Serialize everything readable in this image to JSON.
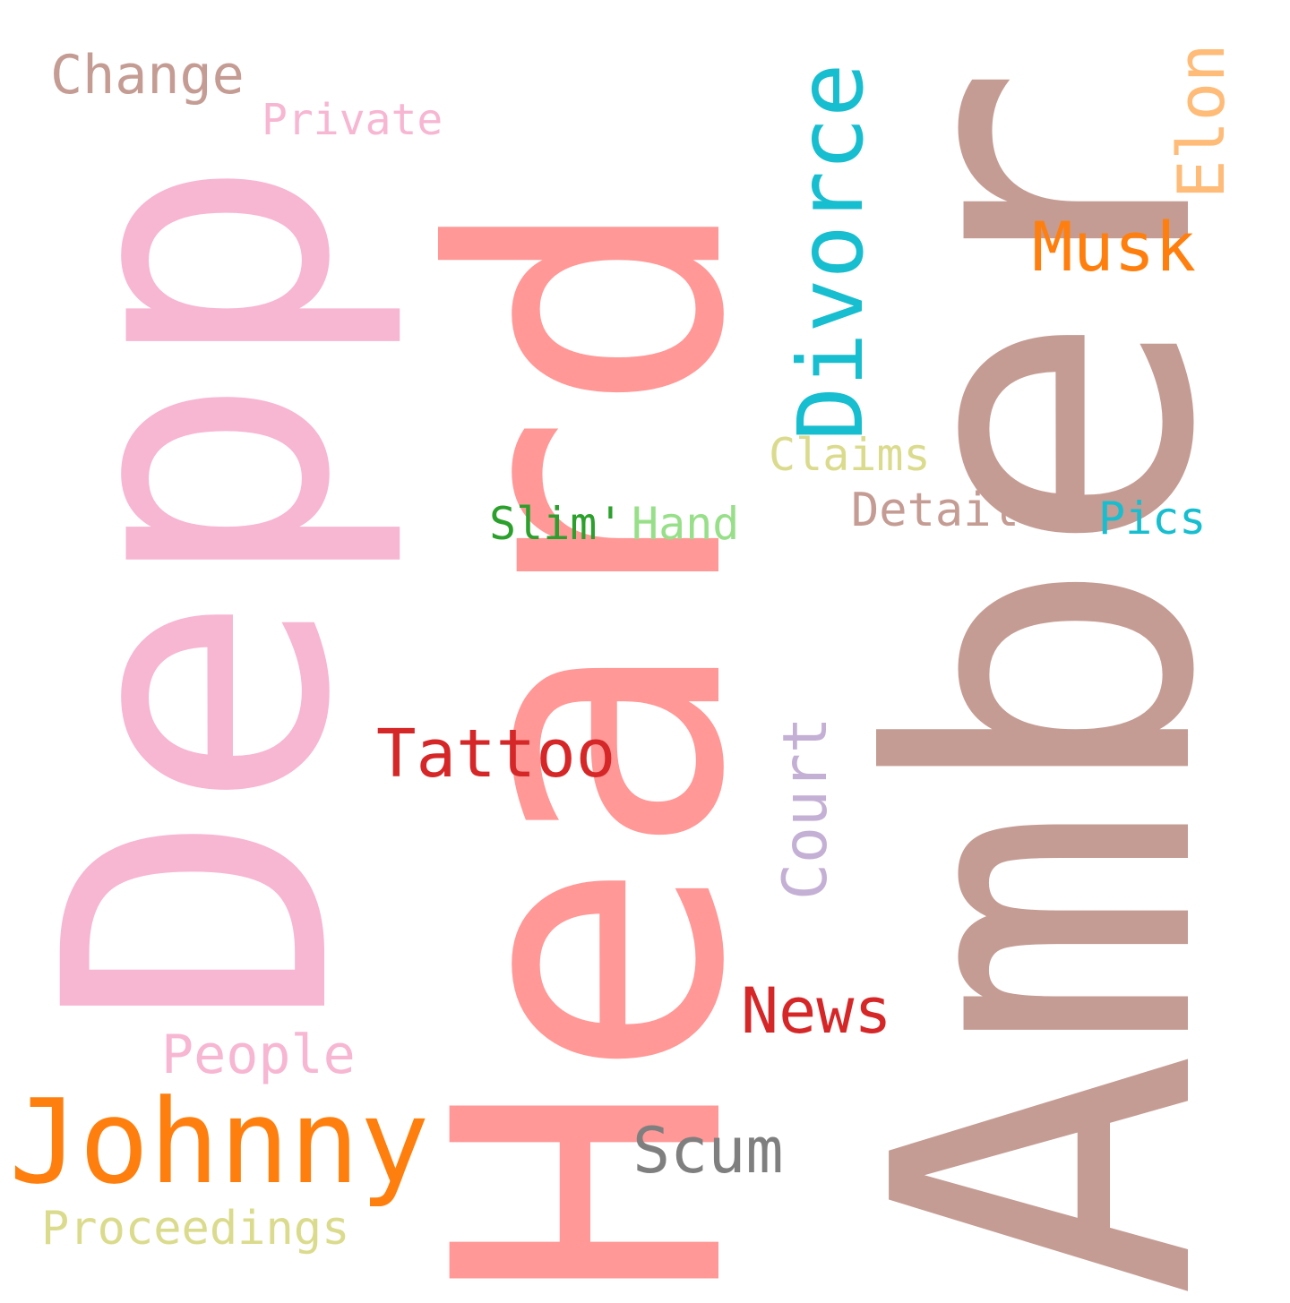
{
  "words": [
    {
      "key": "amber",
      "text": "Amber",
      "color": "#c49c94"
    },
    {
      "key": "heard",
      "text": "Heard",
      "color": "#ff9896"
    },
    {
      "key": "depp",
      "text": "Depp",
      "color": "#f7b6d2"
    },
    {
      "key": "johnny",
      "text": "Johnny",
      "color": "#ff7f0e"
    },
    {
      "key": "divorce",
      "text": "Divorce",
      "color": "#17becf"
    },
    {
      "key": "musk",
      "text": "Musk",
      "color": "#ff7f0e"
    },
    {
      "key": "elon",
      "text": "Elon",
      "color": "#ffbb78"
    },
    {
      "key": "tattoo",
      "text": "Tattoo",
      "color": "#d62728"
    },
    {
      "key": "news",
      "text": "News",
      "color": "#d62728"
    },
    {
      "key": "scum",
      "text": "Scum",
      "color": "#7f7f7f"
    },
    {
      "key": "court",
      "text": "Court",
      "color": "#c5b0d5"
    },
    {
      "key": "people",
      "text": "People",
      "color": "#f7b6d2"
    },
    {
      "key": "proceedings",
      "text": "Proceedings",
      "color": "#dbdb8d"
    },
    {
      "key": "change",
      "text": "Change",
      "color": "#c49c94"
    },
    {
      "key": "private",
      "text": "Private",
      "color": "#f7b6d2"
    },
    {
      "key": "claims",
      "text": "Claims",
      "color": "#dbdb8d"
    },
    {
      "key": "details",
      "text": "Details",
      "color": "#c49c94"
    },
    {
      "key": "pics",
      "text": "Pics",
      "color": "#17becf"
    },
    {
      "key": "slim",
      "text": "Slim'",
      "color": "#2ca02c"
    },
    {
      "key": "hand",
      "text": "Hand",
      "color": "#98df8a"
    }
  ]
}
